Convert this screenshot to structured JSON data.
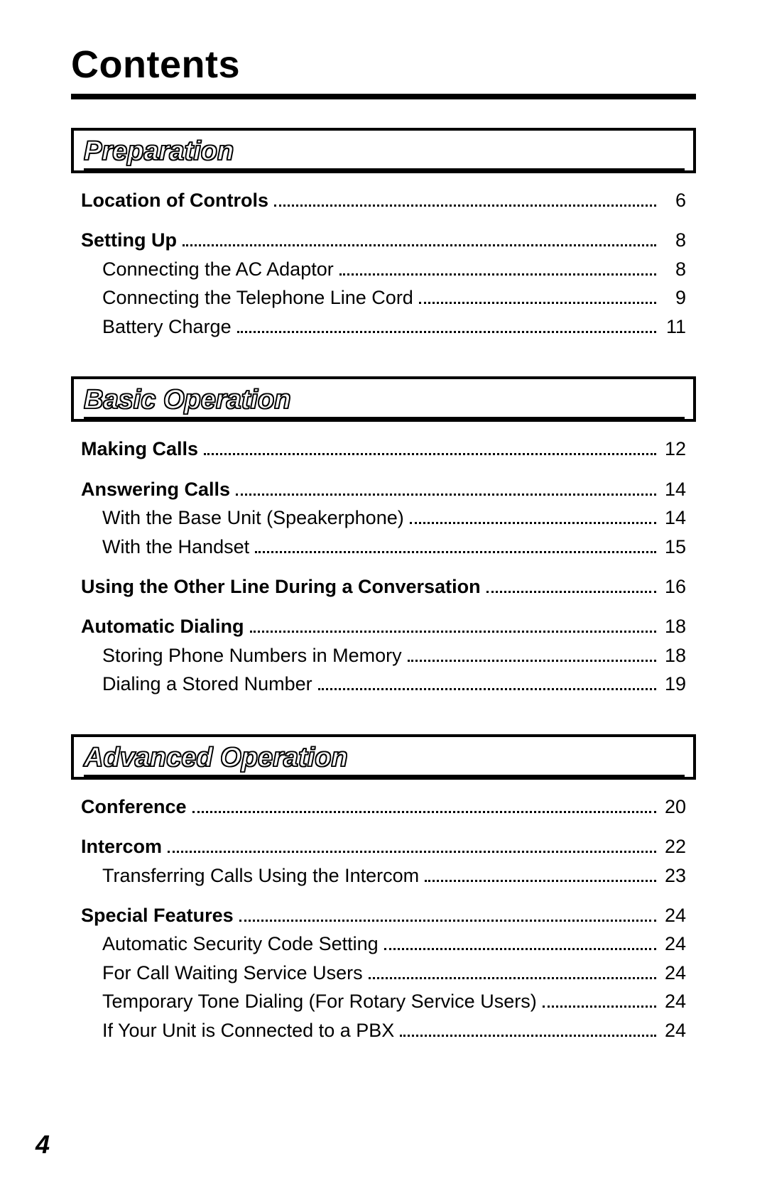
{
  "document": {
    "title": "Contents",
    "page_number": "4",
    "background_color": "#ffffff",
    "text_color": "#000000",
    "rule_color": "#000000",
    "title_fontsize": 54,
    "body_fontsize": 27,
    "section_title_fontsize": 38,
    "dot_leader_color": "#000000"
  },
  "sections": {
    "preparation": {
      "heading": "Preparation",
      "entries": {
        "e0": {
          "label": "Location of Controls",
          "page": "6",
          "bold": true,
          "indent": false
        },
        "e1": {
          "label": "Setting Up",
          "page": "8",
          "bold": true,
          "indent": false
        },
        "e2": {
          "label": "Connecting the AC Adaptor",
          "page": "8",
          "bold": false,
          "indent": true
        },
        "e3": {
          "label": "Connecting the Telephone Line Cord",
          "page": "9",
          "bold": false,
          "indent": true
        },
        "e4": {
          "label": "Battery Charge",
          "page": "11",
          "bold": false,
          "indent": true
        }
      }
    },
    "basic": {
      "heading": "Basic Operation",
      "entries": {
        "e0": {
          "label": "Making Calls",
          "page": "12",
          "bold": true,
          "indent": false
        },
        "e1": {
          "label": "Answering Calls",
          "page": "14",
          "bold": true,
          "indent": false
        },
        "e2": {
          "label": "With the Base Unit (Speakerphone)",
          "page": "14",
          "bold": false,
          "indent": true
        },
        "e3": {
          "label": "With the Handset",
          "page": "15",
          "bold": false,
          "indent": true
        },
        "e4": {
          "label": "Using the Other Line During a Conversation",
          "page": "16",
          "bold": true,
          "indent": false
        },
        "e5": {
          "label": "Automatic Dialing",
          "page": "18",
          "bold": true,
          "indent": false
        },
        "e6": {
          "label": "Storing Phone Numbers in Memory",
          "page": "18",
          "bold": false,
          "indent": true
        },
        "e7": {
          "label": "Dialing a Stored Number",
          "page": "19",
          "bold": false,
          "indent": true
        }
      }
    },
    "advanced": {
      "heading": "Advanced Operation",
      "entries": {
        "e0": {
          "label": "Conference",
          "page": "20",
          "bold": true,
          "indent": false
        },
        "e1": {
          "label": "Intercom",
          "page": "22",
          "bold": true,
          "indent": false
        },
        "e2": {
          "label": "Transferring Calls Using the Intercom",
          "page": "23",
          "bold": false,
          "indent": true
        },
        "e3": {
          "label": "Special Features",
          "page": "24",
          "bold": true,
          "indent": false
        },
        "e4": {
          "label": "Automatic Security Code Setting",
          "page": "24",
          "bold": false,
          "indent": true
        },
        "e5": {
          "label": "For Call Waiting Service Users",
          "page": "24",
          "bold": false,
          "indent": true
        },
        "e6": {
          "label": "Temporary Tone Dialing (For Rotary Service Users)",
          "page": "24",
          "bold": false,
          "indent": true
        },
        "e7": {
          "label": "If Your Unit is Connected to a PBX",
          "page": "24",
          "bold": false,
          "indent": true
        }
      }
    }
  }
}
